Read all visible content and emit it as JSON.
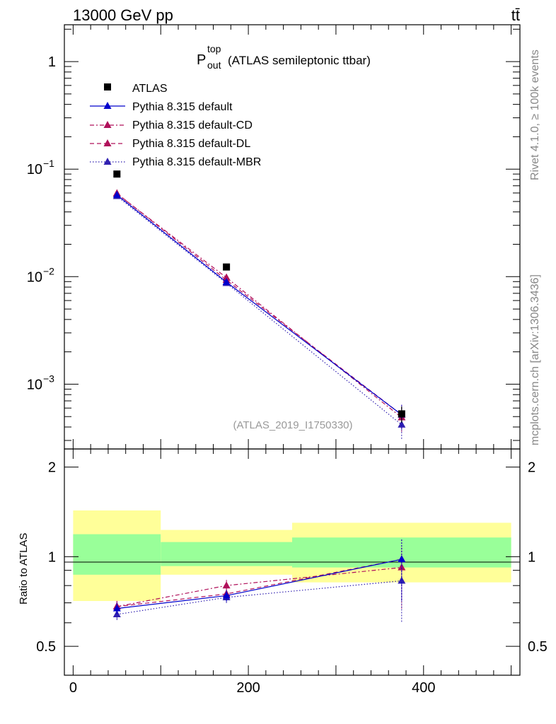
{
  "header": {
    "left": "13000 GeV pp",
    "right": "tt̄"
  },
  "side_labels": {
    "top": "Rivet 4.1.0, ≥ 100k events",
    "bottom": "mcplots.cern.ch [arXiv:1306.3436]"
  },
  "chart_data": {
    "type": "line",
    "title_main": "P",
    "title_sup": "top",
    "title_sub": "out",
    "title_rest": "(ATLAS semileptonic ttbar)",
    "analysis_id": "(ATLAS_2019_I1750330)",
    "xlim": [
      -10,
      510
    ],
    "main_ylim": [
      0.00025,
      2.2
    ],
    "main_yscale": "log",
    "main_ytick_values": [
      1,
      0.1,
      0.01,
      0.001
    ],
    "main_ytick_labels": [
      {
        "base": "1",
        "exp": ""
      },
      {
        "base": "10",
        "exp": "−1"
      },
      {
        "base": "10",
        "exp": "−2"
      },
      {
        "base": "10",
        "exp": "−3"
      }
    ],
    "ratio_ylabel": "Ratio to ATLAS",
    "ratio_ylim": [
      0.4,
      2.3
    ],
    "ratio_yscale": "log",
    "ratio_ytick_values": [
      0.5,
      1,
      2
    ],
    "ratio_ytick_labels": [
      "0.5",
      "1",
      "2"
    ],
    "x_ticks": [
      0,
      200,
      400
    ],
    "x_tick_labels": [
      "0",
      "200",
      "400"
    ],
    "bins": [
      {
        "lo": 0,
        "hi": 100,
        "center": 50
      },
      {
        "lo": 100,
        "hi": 250,
        "center": 175
      },
      {
        "lo": 250,
        "hi": 500,
        "center": 375
      }
    ],
    "data": {
      "name": "ATLAS",
      "x": [
        50,
        175,
        375
      ],
      "y": [
        0.09,
        0.0123,
        0.00053
      ],
      "yerr": [
        0.004,
        0.0008,
        9e-05
      ],
      "band_inner": [
        [
          0.87,
          1.19
        ],
        [
          0.93,
          1.12
        ],
        [
          0.92,
          1.16
        ]
      ],
      "band_outer": [
        [
          0.71,
          1.43
        ],
        [
          0.87,
          1.23
        ],
        [
          0.82,
          1.3
        ]
      ]
    },
    "series": [
      {
        "name": "Pythia 8.315 default",
        "color": "#0000cc",
        "dash": "solid",
        "values": [
          0.0575,
          0.0089,
          0.00052
        ],
        "ratio": [
          0.67,
          0.74,
          0.98
        ]
      },
      {
        "name": "Pythia 8.315 default-CD",
        "color": "#b0105a",
        "dash": "dashdot",
        "values": [
          0.059,
          0.0098,
          0.00049
        ],
        "ratio": [
          0.68,
          0.8,
          0.92
        ]
      },
      {
        "name": "Pythia 8.315 default-DL",
        "color": "#b0105a",
        "dash": "dash",
        "values": [
          0.0595,
          0.0093,
          0.00052
        ],
        "ratio": [
          0.68,
          0.75,
          0.98
        ]
      },
      {
        "name": "Pythia 8.315 default-MBR",
        "color": "#3020b0",
        "dash": "dot",
        "values": [
          0.056,
          0.0087,
          0.00042
        ],
        "ratio": [
          0.64,
          0.73,
          0.83
        ]
      }
    ],
    "colors": {
      "band_inner": "#99ff99",
      "band_outer": "#ffff99",
      "data_marker": "#000000"
    }
  }
}
